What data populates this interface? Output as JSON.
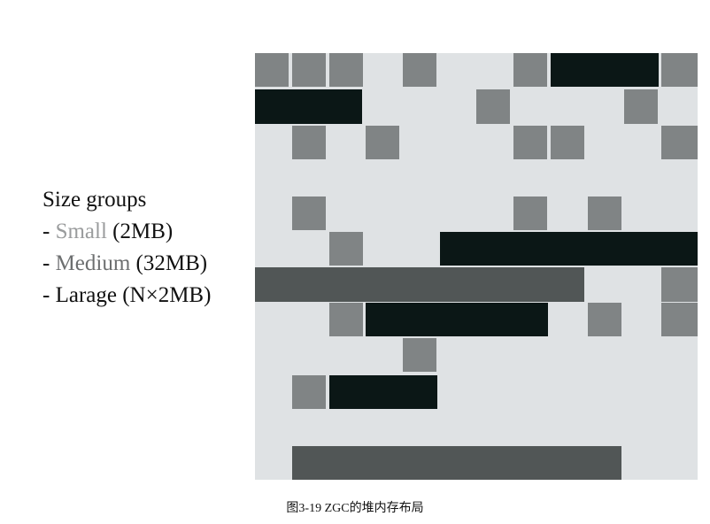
{
  "legend": {
    "title": "Size groups",
    "items": [
      {
        "prefix": "- ",
        "name": "Small",
        "size": " (2MB)",
        "color": "#8a8c8d"
      },
      {
        "prefix": "- ",
        "name": "Medium",
        "size": " (32MB)",
        "color": "#6d6f70"
      },
      {
        "prefix": "- ",
        "name": "Larage",
        "size": " (N×2MB)",
        "color": "#222222"
      }
    ]
  },
  "colors": {
    "background": "#dfe2e4",
    "small": "#808485",
    "medium": "#515656",
    "large": "#0b1716"
  },
  "caption": "图3-19 ZGC的堆内存布局"
}
